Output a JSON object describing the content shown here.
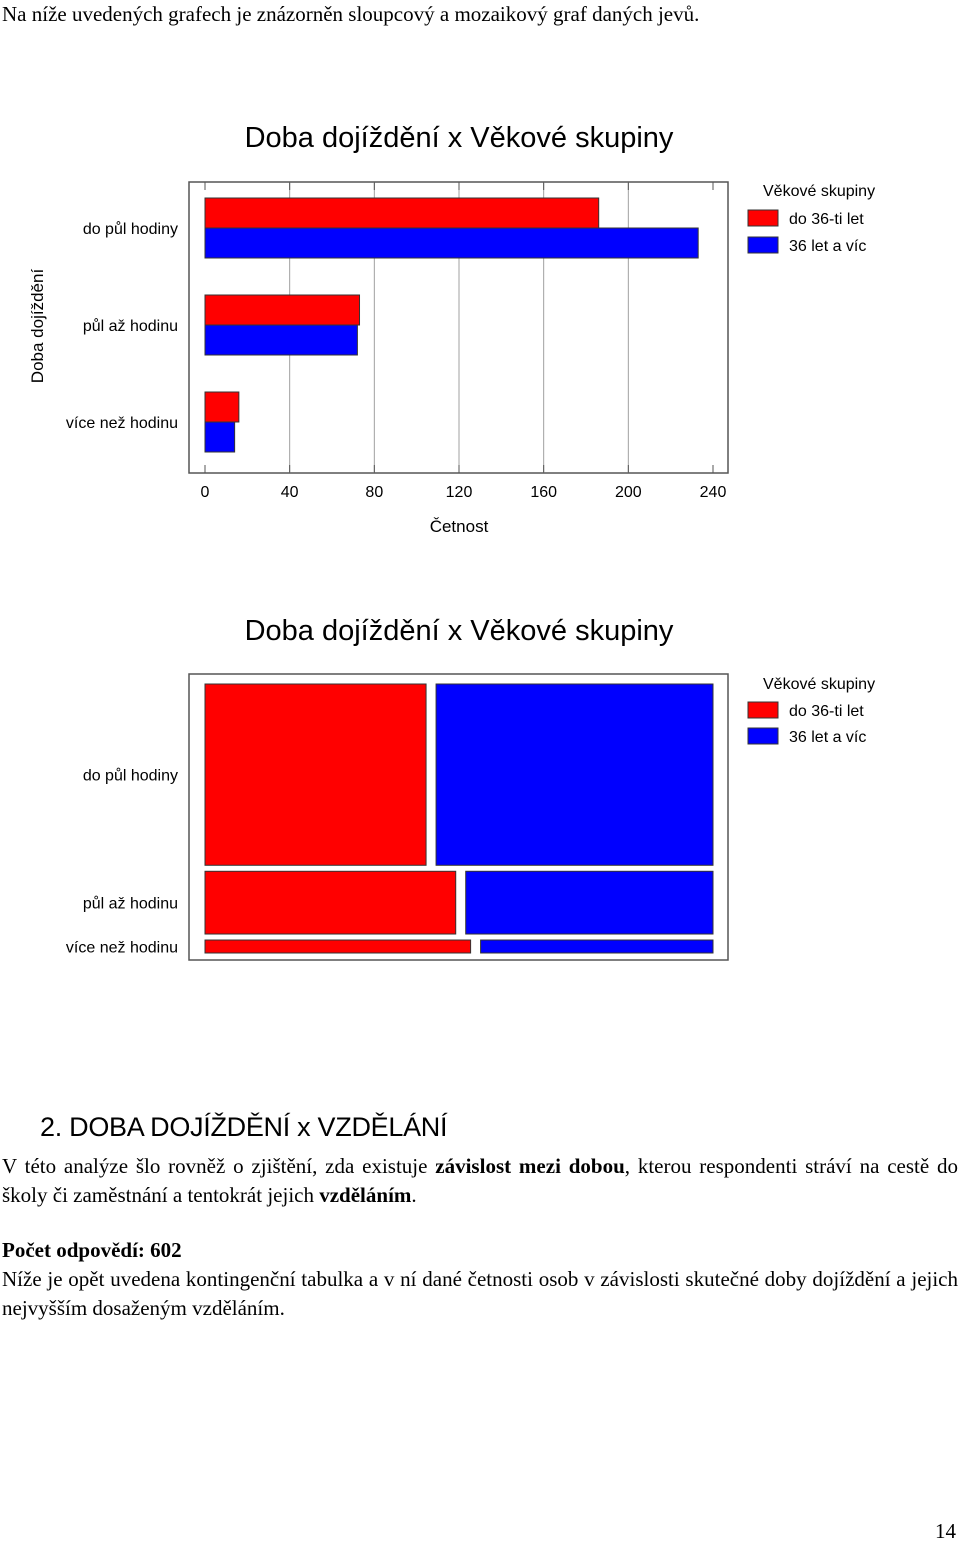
{
  "intro_text": "Na níže uvedených grafech je znázorněn sloupcový a mozaikový graf daných jevů.",
  "colors": {
    "series1": "#ff0000",
    "series2": "#0000ff"
  },
  "chart_data": [
    {
      "type": "bar",
      "orientation": "horizontal",
      "title": "Doba dojíždění x Věkové skupiny",
      "xlabel": "Četnost",
      "ylabel": "Doba dojíždění",
      "xlim": [
        0,
        240
      ],
      "xticks": [
        "0",
        "40",
        "80",
        "120",
        "160",
        "200",
        "240"
      ],
      "grid": true,
      "categories": [
        "do půl hodiny",
        "půl až hodinu",
        "více než hodinu"
      ],
      "legend_title": "Věkové skupiny",
      "legend_position": "right",
      "series": [
        {
          "name": "do 36-ti let",
          "values": [
            186,
            73,
            16
          ]
        },
        {
          "name": "36 let a víc",
          "values": [
            233,
            72,
            14
          ]
        }
      ]
    },
    {
      "type": "mosaic",
      "title": "Doba dojíždění x Věkové skupiny",
      "categories": [
        "do půl hodiny",
        "půl až hodinu",
        "více než hodinu"
      ],
      "legend_title": "Věkové skupiny",
      "legend_position": "right",
      "series": [
        {
          "name": "do 36-ti let",
          "values": [
            186,
            73,
            16
          ]
        },
        {
          "name": "36 let a víc",
          "values": [
            233,
            72,
            14
          ]
        }
      ]
    }
  ],
  "section": {
    "heading": "2.  DOBA DOJÍŽDĚNÍ x VZDĚLÁNÍ"
  },
  "paragraph1": {
    "part1": "V této analýze šlo rovněž o zjištění, zda existuje ",
    "bold1": "závislost mezi dobou",
    "part2": ", kterou respondenti stráví na cestě do školy či zaměstnání a tentokrát jejich ",
    "bold2": "vzděláním",
    "part3": "."
  },
  "paragraph2": {
    "count_label": "Počet odpovědí: 602",
    "text": "Níže je opět uvedena kontingenční tabulka a v ní dané četnosti osob v závislosti skutečné doby dojíždění a jejich nejvyšším dosaženým vzděláním."
  },
  "page_number": "14"
}
